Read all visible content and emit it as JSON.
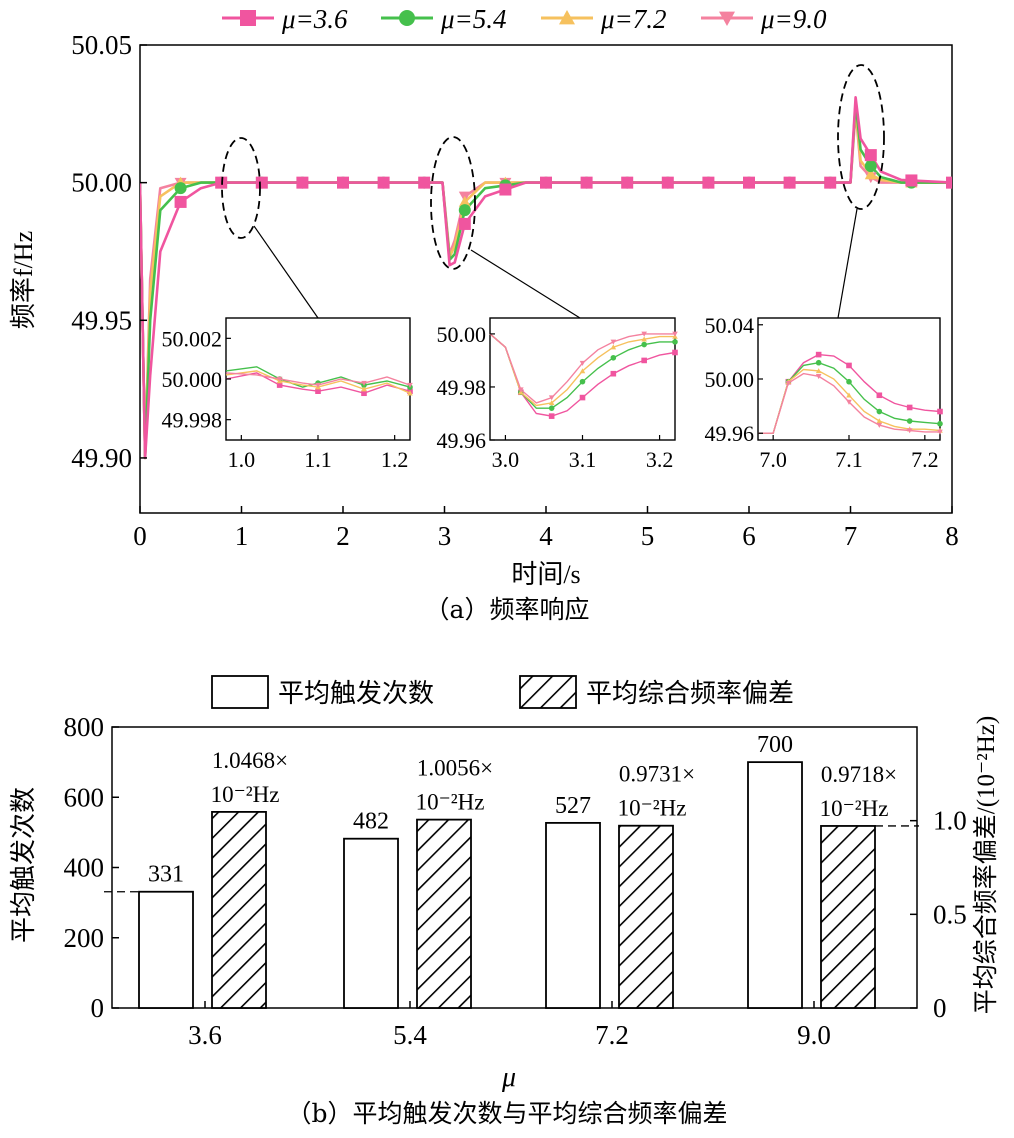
{
  "colors": {
    "mu36": "#f0559f",
    "mu54": "#45c04c",
    "mu72": "#f6c15e",
    "mu90": "#f4829f",
    "axis": "#000000"
  },
  "chart_data": [
    {
      "type": "line",
      "caption": "（a）频率响应",
      "xlabel": "时间/s",
      "ylabel": "频率f/Hz",
      "xlim": [
        0,
        8
      ],
      "ylim": [
        49.88,
        50.05
      ],
      "xticks": [
        "0",
        "1",
        "2",
        "3",
        "4",
        "5",
        "6",
        "7",
        "8"
      ],
      "yticks": [
        "49.90",
        "49.95",
        "50.00",
        "50.05"
      ],
      "legend_position": "top",
      "series": [
        {
          "name": "μ=3.6",
          "marker": "square",
          "x": [
            0,
            0.05,
            0.1,
            0.2,
            0.4,
            0.6,
            0.8,
            1.0,
            1.5,
            2.0,
            2.5,
            2.98,
            3.05,
            3.1,
            3.2,
            3.4,
            3.8,
            4.5,
            5.0,
            6.0,
            7.0,
            7.05,
            7.1,
            7.2,
            7.3,
            7.5,
            8.0
          ],
          "y": [
            50.0,
            49.9,
            49.93,
            49.975,
            49.993,
            49.998,
            50.0,
            50.0,
            50.0,
            50.0,
            50.0,
            50.0,
            49.97,
            49.971,
            49.985,
            49.995,
            50.0,
            50.0,
            50.0,
            50.0,
            50.0,
            50.031,
            50.016,
            50.01,
            50.004,
            50.001,
            50.0
          ]
        },
        {
          "name": "μ=5.4",
          "marker": "circle",
          "x": [
            0,
            0.05,
            0.1,
            0.2,
            0.4,
            0.6,
            0.8,
            1.0,
            1.5,
            2.0,
            2.5,
            2.98,
            3.05,
            3.1,
            3.2,
            3.4,
            3.8,
            4.5,
            5.0,
            6.0,
            7.0,
            7.05,
            7.1,
            7.2,
            7.3,
            7.5,
            8.0
          ],
          "y": [
            50.0,
            49.9,
            49.95,
            49.99,
            49.998,
            50.0,
            50.0,
            50.0,
            50.0,
            50.0,
            50.0,
            50.0,
            49.972,
            49.974,
            49.99,
            49.998,
            50.0,
            50.0,
            50.0,
            50.0,
            50.0,
            50.029,
            50.012,
            50.006,
            50.002,
            50.0,
            50.0
          ]
        },
        {
          "name": "μ=7.2",
          "marker": "triangle-up",
          "x": [
            0,
            0.05,
            0.1,
            0.2,
            0.4,
            0.6,
            0.8,
            1.0,
            1.5,
            2.0,
            2.5,
            2.98,
            3.05,
            3.1,
            3.2,
            3.4,
            3.8,
            4.5,
            5.0,
            6.0,
            7.0,
            7.05,
            7.1,
            7.2,
            7.3,
            7.5,
            8.0
          ],
          "y": [
            50.0,
            49.9,
            49.96,
            49.995,
            50.0,
            50.0,
            50.0,
            50.0,
            50.0,
            50.0,
            50.0,
            50.0,
            49.973,
            49.977,
            49.993,
            50.0,
            50.0,
            50.0,
            50.0,
            50.0,
            50.0,
            50.027,
            50.008,
            50.003,
            50.001,
            50.0,
            50.0
          ]
        },
        {
          "name": "μ=9.0",
          "marker": "triangle-down",
          "x": [
            0,
            0.05,
            0.1,
            0.2,
            0.4,
            0.6,
            0.8,
            1.0,
            1.5,
            2.0,
            2.5,
            2.98,
            3.05,
            3.1,
            3.2,
            3.4,
            3.8,
            4.5,
            5.0,
            6.0,
            7.0,
            7.05,
            7.1,
            7.2,
            7.3,
            7.5,
            8.0
          ],
          "y": [
            50.0,
            49.9,
            49.965,
            49.998,
            50.0,
            50.0,
            50.0,
            50.0,
            50.0,
            50.0,
            50.0,
            50.0,
            49.974,
            49.979,
            49.995,
            50.0,
            50.0,
            50.0,
            50.0,
            50.0,
            50.0,
            50.026,
            50.006,
            50.002,
            50.0,
            50.0,
            50.0
          ]
        }
      ],
      "insets": [
        {
          "xlim": [
            0.98,
            1.22
          ],
          "ylim": [
            49.997,
            50.003
          ],
          "xticks": [
            "1.0",
            "1.1",
            "1.2"
          ],
          "yticks": [
            "49.998",
            "50.000",
            "50.002"
          ],
          "series": [
            {
              "name": "μ=3.6",
              "x": [
                0.98,
                1.02,
                1.05,
                1.08,
                1.1,
                1.13,
                1.16,
                1.19,
                1.22
              ],
              "y": [
                50.0,
                50.0003,
                49.9997,
                49.9995,
                49.9994,
                49.9996,
                49.9993,
                49.9997,
                49.9994
              ]
            },
            {
              "name": "μ=5.4",
              "x": [
                0.98,
                1.02,
                1.05,
                1.08,
                1.1,
                1.13,
                1.16,
                1.19,
                1.22
              ],
              "y": [
                50.0004,
                50.0006,
                50.0,
                49.9996,
                49.9998,
                50.0001,
                49.9997,
                49.9999,
                49.9996
              ]
            },
            {
              "name": "μ=7.2",
              "x": [
                0.98,
                1.02,
                1.05,
                1.08,
                1.1,
                1.13,
                1.16,
                1.19,
                1.22
              ],
              "y": [
                50.0002,
                50.0004,
                49.9999,
                49.9997,
                49.9996,
                49.9999,
                49.9995,
                49.9998,
                49.9993
              ]
            },
            {
              "name": "μ=9.0",
              "x": [
                0.98,
                1.02,
                1.05,
                1.08,
                1.1,
                1.13,
                1.16,
                1.19,
                1.22
              ],
              "y": [
                50.0003,
                50.0002,
                50.0,
                49.9998,
                49.9997,
                50.0,
                49.9998,
                50.0001,
                49.9997
              ]
            }
          ]
        },
        {
          "xlim": [
            2.98,
            3.22
          ],
          "ylim": [
            49.96,
            50.006
          ],
          "xticks": [
            "3.0",
            "3.1",
            "3.2"
          ],
          "yticks": [
            "49.96",
            "49.98",
            "50.00"
          ],
          "series": [
            {
              "name": "μ=3.6",
              "x": [
                2.98,
                3.0,
                3.02,
                3.04,
                3.06,
                3.08,
                3.1,
                3.12,
                3.14,
                3.16,
                3.18,
                3.2,
                3.22
              ],
              "y": [
                50.0,
                49.995,
                49.978,
                49.97,
                49.969,
                49.971,
                49.976,
                49.981,
                49.985,
                49.988,
                49.99,
                49.992,
                49.993
              ]
            },
            {
              "name": "μ=5.4",
              "x": [
                2.98,
                3.0,
                3.02,
                3.04,
                3.06,
                3.08,
                3.1,
                3.12,
                3.14,
                3.16,
                3.18,
                3.2,
                3.22
              ],
              "y": [
                50.0,
                49.995,
                49.978,
                49.972,
                49.972,
                49.976,
                49.982,
                49.987,
                49.991,
                49.994,
                49.996,
                49.997,
                49.997
              ]
            },
            {
              "name": "μ=7.2",
              "x": [
                2.98,
                3.0,
                3.02,
                3.04,
                3.06,
                3.08,
                3.1,
                3.12,
                3.14,
                3.16,
                3.18,
                3.2,
                3.22
              ],
              "y": [
                50.0,
                49.995,
                49.978,
                49.973,
                49.974,
                49.979,
                49.986,
                49.991,
                49.995,
                49.997,
                49.998,
                49.999,
                49.999
              ]
            },
            {
              "name": "μ=9.0",
              "x": [
                2.98,
                3.0,
                3.02,
                3.04,
                3.06,
                3.08,
                3.1,
                3.12,
                3.14,
                3.16,
                3.18,
                3.2,
                3.22
              ],
              "y": [
                50.0,
                49.995,
                49.979,
                49.974,
                49.976,
                49.982,
                49.989,
                49.994,
                49.997,
                49.999,
                50.0,
                50.0,
                50.0
              ]
            }
          ]
        },
        {
          "xlim": [
            6.98,
            7.22
          ],
          "ylim": [
            49.955,
            50.045
          ],
          "xticks": [
            "7.0",
            "7.1",
            "7.2"
          ],
          "yticks": [
            "49.96",
            "50.00",
            "50.04"
          ],
          "series": [
            {
              "name": "μ=3.6",
              "x": [
                6.98,
                7.0,
                7.02,
                7.04,
                7.06,
                7.08,
                7.1,
                7.12,
                7.14,
                7.16,
                7.18,
                7.2,
                7.22
              ],
              "y": [
                49.96,
                49.96,
                49.998,
                50.012,
                50.018,
                50.017,
                50.01,
                49.998,
                49.988,
                49.982,
                49.979,
                49.977,
                49.976
              ]
            },
            {
              "name": "μ=5.4",
              "x": [
                6.98,
                7.0,
                7.02,
                7.04,
                7.06,
                7.08,
                7.1,
                7.12,
                7.14,
                7.16,
                7.18,
                7.2,
                7.22
              ],
              "y": [
                49.96,
                49.96,
                49.998,
                50.01,
                50.012,
                50.008,
                49.998,
                49.985,
                49.976,
                49.971,
                49.969,
                49.968,
                49.967
              ]
            },
            {
              "name": "μ=7.2",
              "x": [
                6.98,
                7.0,
                7.02,
                7.04,
                7.06,
                7.08,
                7.1,
                7.12,
                7.14,
                7.16,
                7.18,
                7.2,
                7.22
              ],
              "y": [
                49.96,
                49.96,
                49.998,
                50.007,
                50.006,
                50.0,
                49.988,
                49.976,
                49.969,
                49.965,
                49.963,
                49.963,
                49.962
              ]
            },
            {
              "name": "μ=9.0",
              "x": [
                6.98,
                7.0,
                7.02,
                7.04,
                7.06,
                7.08,
                7.1,
                7.12,
                7.14,
                7.16,
                7.18,
                7.2,
                7.22
              ],
              "y": [
                49.96,
                49.96,
                49.997,
                50.004,
                50.002,
                49.995,
                49.983,
                49.972,
                49.966,
                49.963,
                49.962,
                49.961,
                49.961
              ]
            }
          ]
        }
      ]
    },
    {
      "type": "bar",
      "caption": "（b）平均触发次数与平均综合频率偏差",
      "xlabel": "μ",
      "ylabel_left": "平均触发次数",
      "ylabel_right": "平均综合频率偏差/(10⁻²Hz)",
      "categories": [
        "3.6",
        "5.4",
        "7.2",
        "9.0"
      ],
      "ylim_left": [
        0,
        800
      ],
      "ylim_right": [
        0,
        1.5
      ],
      "yticks_left": [
        "0",
        "200",
        "400",
        "600",
        "800"
      ],
      "yticks_right": [
        "0",
        "0.5",
        "1.0"
      ],
      "legend_position": "top",
      "series": [
        {
          "name": "平均触发次数",
          "axis": "left",
          "values": [
            331,
            482,
            527,
            700
          ],
          "labels": [
            "331",
            "482",
            "527",
            "700"
          ]
        },
        {
          "name": "平均综合频率偏差",
          "axis": "right",
          "values": [
            1.0468,
            1.0056,
            0.9731,
            0.9718
          ],
          "labels": [
            "1.0468×",
            "1.0056×",
            "0.9731×",
            "0.9718×"
          ],
          "unit_label": "10⁻²Hz"
        }
      ]
    }
  ]
}
